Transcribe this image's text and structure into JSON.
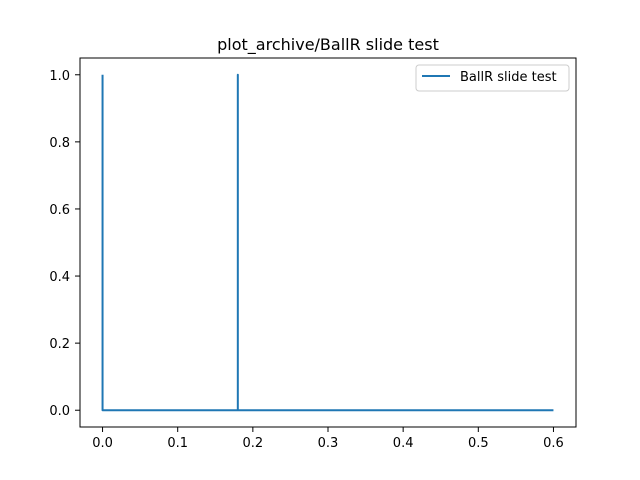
{
  "chart_data": {
    "type": "line",
    "title": "plot_archive/BallR slide test",
    "xlabel": "",
    "ylabel": "",
    "xlim": [
      -0.03,
      0.63
    ],
    "ylim": [
      -0.05,
      1.05
    ],
    "x_ticks": [
      0.0,
      0.1,
      0.2,
      0.3,
      0.4,
      0.5,
      0.6
    ],
    "x_tick_labels": [
      "0.0",
      "0.1",
      "0.2",
      "0.3",
      "0.4",
      "0.5",
      "0.6"
    ],
    "y_ticks": [
      0.0,
      0.2,
      0.4,
      0.6,
      0.8,
      1.0
    ],
    "y_tick_labels": [
      "0.0",
      "0.2",
      "0.4",
      "0.6",
      "0.8",
      "1.0"
    ],
    "grid": false,
    "legend_position": "top-right",
    "series": [
      {
        "name": "BallR slide test",
        "color": "#1f77b4",
        "x": [
          0.0,
          0.0,
          0.18,
          0.18,
          0.18,
          0.6
        ],
        "y": [
          1.0,
          0.0,
          0.0,
          1.0,
          0.0,
          0.0
        ]
      }
    ]
  }
}
